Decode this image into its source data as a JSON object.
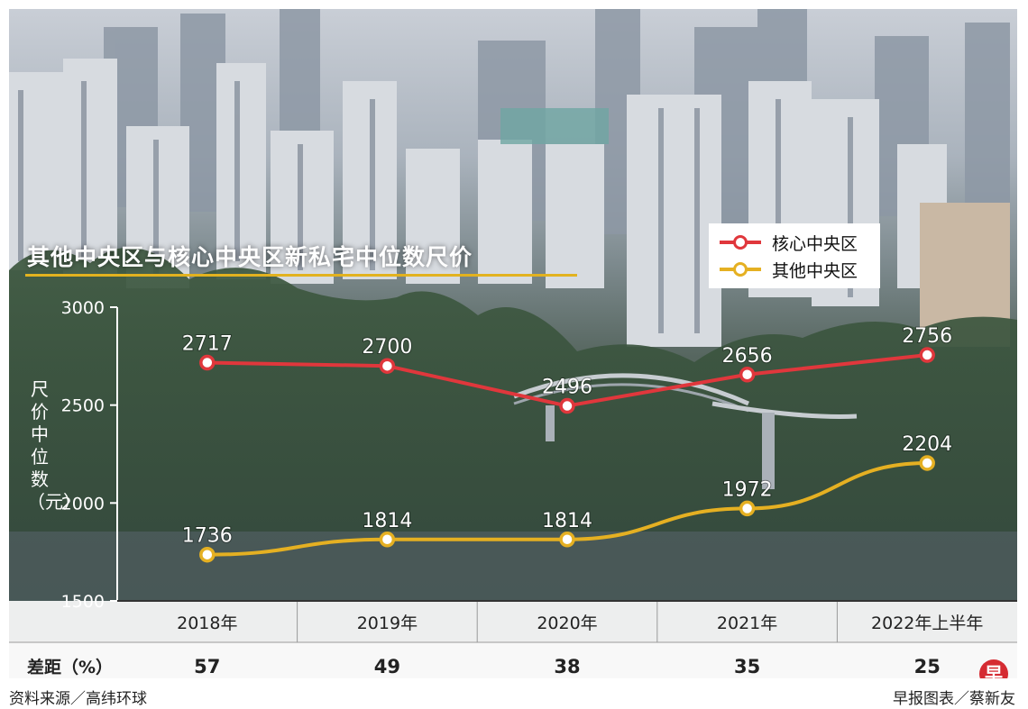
{
  "chart_data": {
    "type": "line",
    "title": "其他中央区与核心中央区新私宅中位数尺价",
    "ylabel": "尺价中位数（元）",
    "ylim": [
      1500,
      3000
    ],
    "yticks": [
      1500,
      2000,
      2500,
      3000
    ],
    "categories": [
      "2018年",
      "2019年",
      "2020年",
      "2021年",
      "2022年上半年"
    ],
    "series": [
      {
        "name": "核心中央区",
        "color": "#e0373c",
        "values": [
          2717,
          2700,
          2496,
          2656,
          2756
        ]
      },
      {
        "name": "其他中央区",
        "color": "#e5b022",
        "values": [
          1736,
          1814,
          1814,
          1972,
          2204
        ]
      }
    ],
    "legend_position": "top-right",
    "gap_row": {
      "label": "差距（%）",
      "values": [
        57,
        49,
        38,
        35,
        25
      ]
    }
  },
  "footer": {
    "source": "资料来源／高纬环球",
    "credit": "早报图表／蔡新友",
    "logo_char": "早"
  }
}
